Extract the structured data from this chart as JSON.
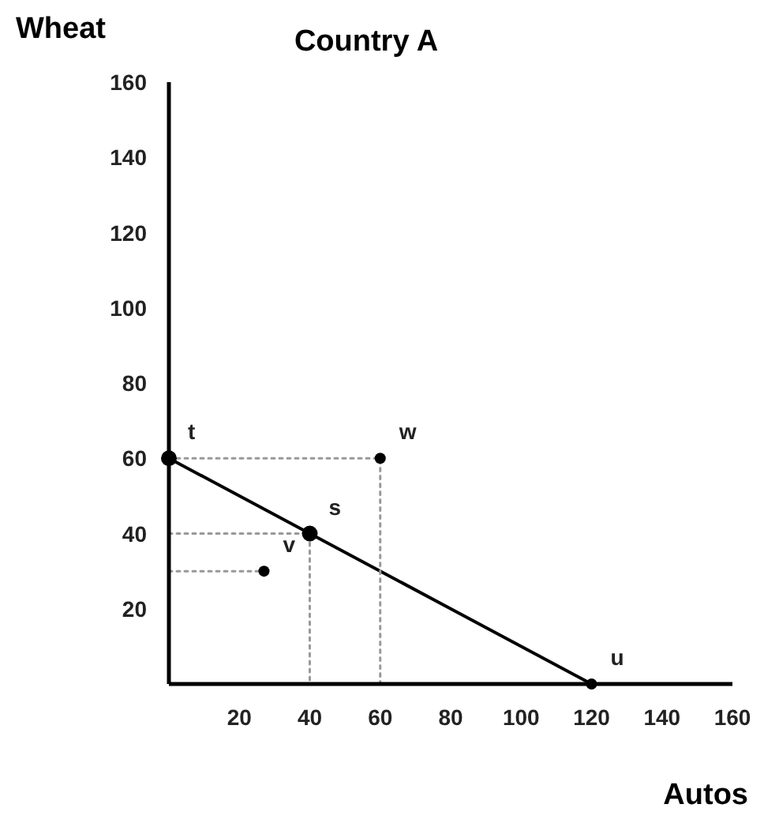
{
  "chart_data": {
    "type": "scatter",
    "title": "Country A",
    "xlabel": "Autos",
    "ylabel": "Wheat",
    "xlim": [
      0,
      160
    ],
    "ylim": [
      0,
      160
    ],
    "xticks": [
      20,
      40,
      60,
      80,
      100,
      120,
      140,
      160
    ],
    "yticks": [
      20,
      40,
      60,
      80,
      100,
      120,
      140,
      160
    ],
    "grid": false,
    "series": [
      {
        "type": "line",
        "color": "#000000",
        "x": [
          0,
          120
        ],
        "values": [
          60,
          0
        ],
        "line_style": "solid",
        "marker": "none"
      },
      {
        "type": "line",
        "color": "#999999",
        "x": [
          0,
          60,
          60
        ],
        "values": [
          60,
          60,
          0
        ],
        "line_style": "dotted",
        "marker": "none"
      },
      {
        "type": "line",
        "color": "#999999",
        "x": [
          0,
          40,
          40
        ],
        "values": [
          40,
          40,
          0
        ],
        "line_style": "dotted",
        "marker": "none"
      },
      {
        "type": "line",
        "color": "#999999",
        "x": [
          0,
          27
        ],
        "values": [
          30,
          30
        ],
        "line_style": "dotted",
        "marker": "none"
      },
      {
        "color": "#000000",
        "x": [
          0,
          40
        ],
        "values": [
          60,
          40
        ],
        "marker": "circle"
      },
      {
        "color": "#000000",
        "x": [
          60,
          27,
          120
        ],
        "values": [
          60,
          30,
          0
        ],
        "marker": "circle"
      }
    ],
    "annotations": [
      {
        "text": "t",
        "x": 0,
        "y": 60
      },
      {
        "text": "s",
        "x": 40,
        "y": 40
      },
      {
        "text": "w",
        "x": 60,
        "y": 60
      },
      {
        "text": "v",
        "x": 27,
        "y": 30
      },
      {
        "text": "u",
        "x": 120,
        "y": 0
      }
    ]
  }
}
